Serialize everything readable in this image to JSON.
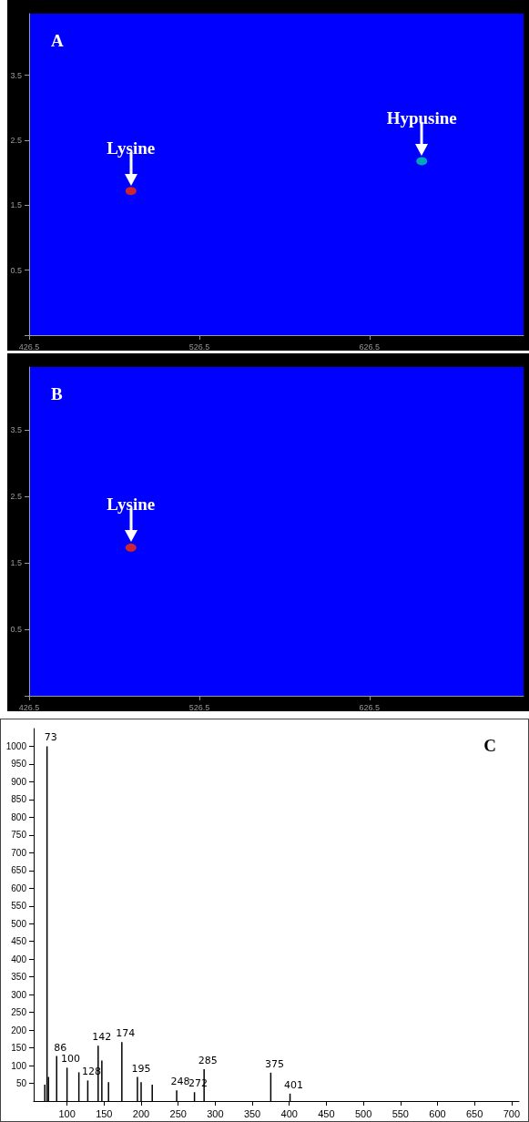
{
  "chart_data": [
    {
      "type": "scatter",
      "title": "A",
      "x": [
        486.3,
        657.2
      ],
      "values": [
        1.72,
        2.18
      ],
      "colors": [
        "#ff3000",
        "#00d0a0"
      ],
      "marker": "circle",
      "xlim": [
        426.5,
        717
      ],
      "xticks": [
        426.5,
        526.5,
        626.5
      ],
      "ylim": [
        -0.5,
        4.45
      ],
      "yticks": [
        {
          "value": -0.5,
          "label": null
        },
        0.5,
        1.5,
        2.5,
        3.5
      ],
      "annotations": [
        {
          "text": "Lysine",
          "x": 486.3,
          "y": 1.72
        },
        {
          "text": "Hypusine",
          "x": 657.2,
          "y": 2.18
        }
      ]
    },
    {
      "type": "scatter",
      "title": "B",
      "x": [
        486.3
      ],
      "values": [
        1.73
      ],
      "colors": [
        "#ff3000"
      ],
      "marker": "circle",
      "xlim": [
        426.5,
        717
      ],
      "xticks": [
        426.5,
        526.5,
        626.5
      ],
      "ylim": [
        -0.5,
        4.45
      ],
      "yticks": [
        {
          "value": -0.5,
          "label": null
        },
        0.5,
        1.5,
        2.5,
        3.5
      ],
      "annotations": [
        {
          "text": "Lysine",
          "x": 486.3,
          "y": 1.73
        }
      ]
    },
    {
      "type": "bar",
      "title": "C",
      "color": "#000000",
      "xlim": [
        55,
        710
      ],
      "xticks": [
        100,
        150,
        200,
        250,
        300,
        350,
        400,
        450,
        500,
        550,
        600,
        650,
        700
      ],
      "ylim": [
        0,
        1050
      ],
      "yticks": [
        50,
        100,
        150,
        200,
        250,
        300,
        350,
        400,
        450,
        500,
        550,
        600,
        650,
        700,
        750,
        800,
        850,
        900,
        950,
        1000
      ],
      "x": [
        70,
        73,
        75,
        86,
        100,
        116,
        128,
        142,
        147,
        156,
        174,
        195,
        200,
        215,
        248,
        272,
        285,
        375,
        401
      ],
      "values": [
        46,
        1000,
        68,
        127,
        94,
        81,
        58,
        156,
        114,
        53,
        166,
        68,
        53,
        46,
        30,
        25,
        90,
        80,
        21
      ],
      "annotations": [
        {
          "text": "73",
          "x": 73,
          "y": 1000
        },
        {
          "text": "86",
          "x": 86,
          "y": 127
        },
        {
          "text": "100",
          "x": 100,
          "y": 94
        },
        {
          "text": "128",
          "x": 128,
          "y": 58
        },
        {
          "text": "142",
          "x": 142,
          "y": 156
        },
        {
          "text": "174",
          "x": 174,
          "y": 166
        },
        {
          "text": "195",
          "x": 195,
          "y": 68
        },
        {
          "text": "248",
          "x": 248,
          "y": 30
        },
        {
          "text": "272",
          "x": 272,
          "y": 25
        },
        {
          "text": "285",
          "x": 285,
          "y": 90
        },
        {
          "text": "375",
          "x": 375,
          "y": 80
        },
        {
          "text": "401",
          "x": 401,
          "y": 21
        }
      ]
    }
  ]
}
